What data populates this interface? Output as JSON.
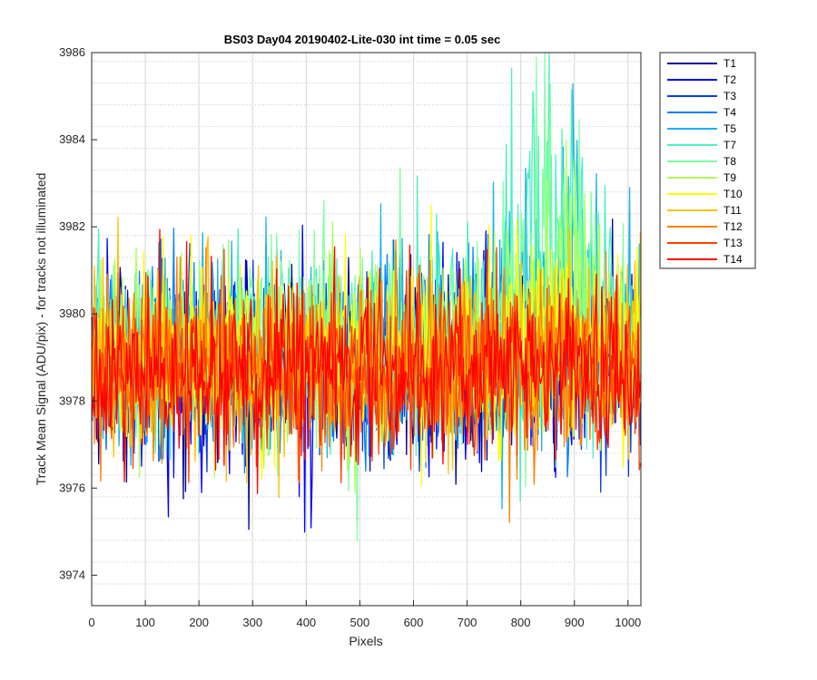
{
  "chart_data": {
    "type": "line",
    "title": "BS03 Day04 20190402-Lite-030 int time = 0.05 sec",
    "xlabel": "Pixels",
    "ylabel": "Track Mean Signal (ADU/pix) - for tracks not illuminated",
    "xlim": [
      0,
      1024
    ],
    "ylim": [
      3973.3,
      3986
    ],
    "xticks": [
      0,
      100,
      200,
      300,
      400,
      500,
      600,
      700,
      800,
      900,
      1000
    ],
    "yticks": [
      3974,
      3976,
      3978,
      3980,
      3982,
      3984,
      3986
    ],
    "grid": "major-and-minor",
    "legend_position": "outside-top-right",
    "x_range_note": "pixel index 1 to 1024",
    "series": [
      {
        "name": "T1",
        "color": "#00008f",
        "mean": 3978.9,
        "noise": 1.1,
        "rise": 0.0
      },
      {
        "name": "T2",
        "color": "#0000ff",
        "mean": 3978.8,
        "noise": 1.15,
        "rise": 0.0
      },
      {
        "name": "T3",
        "color": "#0a3fe0",
        "mean": 3978.8,
        "noise": 1.1,
        "rise": 0.0
      },
      {
        "name": "T4",
        "color": "#0080ff",
        "mean": 3978.9,
        "noise": 1.1,
        "rise": 0.3
      },
      {
        "name": "T5",
        "color": "#1ab2ee",
        "mean": 3979.0,
        "noise": 1.1,
        "rise": 1.5
      },
      {
        "name": "T7",
        "color": "#4cf0c0",
        "mean": 3979.2,
        "noise": 1.1,
        "rise": 2.6
      },
      {
        "name": "T8",
        "color": "#80ffa0",
        "mean": 3979.2,
        "noise": 1.05,
        "rise": 1.8
      },
      {
        "name": "T9",
        "color": "#b0ff50",
        "mean": 3979.1,
        "noise": 1.05,
        "rise": 0.9
      },
      {
        "name": "T10",
        "color": "#ffff00",
        "mean": 3979.0,
        "noise": 1.0,
        "rise": 0.4
      },
      {
        "name": "T11",
        "color": "#ffc000",
        "mean": 3978.9,
        "noise": 1.0,
        "rise": 0.1
      },
      {
        "name": "T12",
        "color": "#ff8000",
        "mean": 3978.7,
        "noise": 1.0,
        "rise": 0.0
      },
      {
        "name": "T13",
        "color": "#ff4000",
        "mean": 3978.7,
        "noise": 1.0,
        "rise": 0.0
      },
      {
        "name": "T14",
        "color": "#ff0000",
        "mean": 3978.8,
        "noise": 0.95,
        "rise": 0.0
      }
    ]
  }
}
